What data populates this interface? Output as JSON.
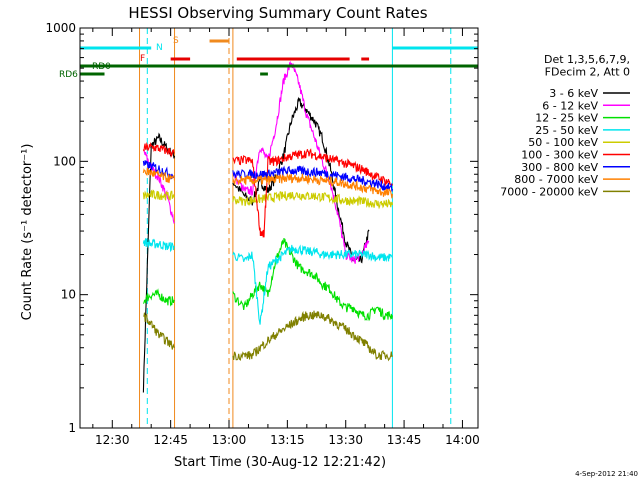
{
  "chart_data": {
    "type": "line",
    "title": "HESSI Observing Summary Count Rates",
    "xlabel": "Start Time (30-Aug-12 12:21:42)",
    "ylabel": "Count Rate (s⁻¹ detector⁻¹)",
    "ylim": [
      1,
      1000
    ],
    "yscale": "log",
    "xlim": [
      "12:21:42",
      "14:04:00"
    ],
    "x_ticks": [
      "12:30",
      "12:45",
      "13:00",
      "13:15",
      "13:30",
      "13:45",
      "14:00"
    ],
    "y_ticks": [
      "1",
      "10",
      "100",
      "1000"
    ],
    "legend_header": [
      "Det 1,3,5,6,7,9,",
      "FDecim 2, Att 0"
    ],
    "legend_placement": "right",
    "footer_timestamp": "4-Sep-2012 21:40",
    "flag_labels": {
      "n": "N",
      "s": "S",
      "f": "F",
      "rd0": "RD0",
      "rd6": "RD6"
    },
    "colors": {
      "axes": "#000000",
      "flag_n": "#00e5ee",
      "flag_s": "#f08a1e",
      "flag_f": "#e60000",
      "flag_rd": "#006400",
      "night_line": "#00e5ee",
      "saa_line": "#f08a1e"
    },
    "series": [
      {
        "name": "3 - 6 keV",
        "color": "#000000",
        "segments": [
          {
            "x": [
              "12:38",
              "12:40",
              "12:42",
              "12:44",
              "12:46"
            ],
            "y": [
              2,
              130,
              150,
              125,
              110
            ]
          },
          {
            "x": [
              "13:01",
              "13:04",
              "13:06",
              "13:08",
              "13:10",
              "13:12",
              "13:14",
              "13:16",
              "13:18",
              "13:20",
              "13:22",
              "13:24",
              "13:26",
              "13:28",
              "13:30",
              "13:32",
              "13:34",
              "13:36"
            ],
            "y": [
              70,
              55,
              50,
              70,
              60,
              75,
              110,
              200,
              280,
              240,
              200,
              150,
              90,
              45,
              25,
              18,
              18,
              30
            ]
          }
        ]
      },
      {
        "name": "6 - 12 keV",
        "color": "#ff00ff",
        "segments": [
          {
            "x": [
              "12:38",
              "12:40",
              "12:42",
              "12:44",
              "12:46"
            ],
            "y": [
              120,
              90,
              75,
              55,
              35
            ]
          },
          {
            "x": [
              "13:01",
              "13:04",
              "13:06",
              "13:08",
              "13:10",
              "13:12",
              "13:14",
              "13:16",
              "13:18",
              "13:20",
              "13:22",
              "13:24",
              "13:26",
              "13:28",
              "13:30",
              "13:32",
              "13:34",
              "13:36"
            ],
            "y": [
              80,
              60,
              60,
              130,
              100,
              180,
              400,
              550,
              380,
              220,
              150,
              100,
              70,
              40,
              20,
              18,
              20,
              25
            ]
          }
        ]
      },
      {
        "name": "12 - 25 keV",
        "color": "#00e000",
        "segments": [
          {
            "x": [
              "12:38",
              "12:40",
              "12:42",
              "12:44",
              "12:46"
            ],
            "y": [
              9,
              10,
              10,
              9,
              9
            ]
          },
          {
            "x": [
              "13:01",
              "13:04",
              "13:06",
              "13:08",
              "13:10",
              "13:12",
              "13:14",
              "13:16",
              "13:18",
              "13:20",
              "13:22",
              "13:24",
              "13:26",
              "13:28",
              "13:30",
              "13:32",
              "13:34",
              "13:36",
              "13:38",
              "13:40",
              "13:42"
            ],
            "y": [
              10,
              8,
              10,
              12,
              10,
              18,
              25,
              20,
              16,
              15,
              14,
              12,
              11,
              9,
              8,
              8,
              7,
              7,
              8,
              7,
              7
            ]
          }
        ]
      },
      {
        "name": "25 - 50 keV",
        "color": "#00e5ee",
        "segments": [
          {
            "x": [
              "12:38",
              "12:40",
              "12:42",
              "12:44",
              "12:46"
            ],
            "y": [
              25,
              24,
              24,
              23,
              23
            ]
          },
          {
            "x": [
              "13:01",
              "13:04",
              "13:06",
              "13:08",
              "13:10",
              "13:12",
              "13:14",
              "13:16",
              "13:18",
              "13:20",
              "13:22",
              "13:24",
              "13:26",
              "13:28",
              "13:30",
              "13:32",
              "13:34",
              "13:36",
              "13:38",
              "13:40",
              "13:42"
            ],
            "y": [
              20,
              18,
              20,
              6,
              16,
              18,
              20,
              22,
              22,
              21,
              21,
              20,
              20,
              20,
              20,
              20,
              20,
              20,
              19,
              19,
              19
            ]
          }
        ]
      },
      {
        "name": "50 - 100 keV",
        "color": "#cccc00",
        "segments": [
          {
            "x": [
              "12:38",
              "12:40",
              "12:42",
              "12:44",
              "12:46"
            ],
            "y": [
              55,
              56,
              56,
              55,
              55
            ]
          },
          {
            "x": [
              "13:01",
              "13:04",
              "13:06",
              "13:08",
              "13:10",
              "13:12",
              "13:14",
              "13:16",
              "13:18",
              "13:20",
              "13:22",
              "13:24",
              "13:26",
              "13:28",
              "13:30",
              "13:32",
              "13:34",
              "13:36",
              "13:38",
              "13:40",
              "13:42"
            ],
            "y": [
              52,
              50,
              51,
              52,
              53,
              54,
              55,
              56,
              56,
              55,
              55,
              54,
              53,
              52,
              51,
              50,
              50,
              49,
              48,
              48,
              47
            ]
          }
        ]
      },
      {
        "name": "100 - 300 keV",
        "color": "#ff0000",
        "segments": [
          {
            "x": [
              "12:38",
              "12:40",
              "12:42",
              "12:44",
              "12:46"
            ],
            "y": [
              125,
              128,
              125,
              120,
              115
            ]
          },
          {
            "x": [
              "13:01",
              "13:04",
              "13:06",
              "13:08",
              "13:09",
              "13:10",
              "13:12",
              "13:14",
              "13:16",
              "13:18",
              "13:20",
              "13:22",
              "13:24",
              "13:26",
              "13:28",
              "13:30",
              "13:32",
              "13:34",
              "13:36",
              "13:38",
              "13:40",
              "13:42"
            ],
            "y": [
              100,
              102,
              100,
              30,
              28,
              100,
              100,
              105,
              110,
              112,
              115,
              112,
              108,
              104,
              100,
              96,
              92,
              88,
              82,
              76,
              72,
              68
            ]
          }
        ]
      },
      {
        "name": "300 - 800 keV",
        "color": "#0000ff",
        "segments": [
          {
            "x": [
              "12:38",
              "12:40",
              "12:42",
              "12:44",
              "12:46"
            ],
            "y": [
              95,
              92,
              88,
              82,
              78
            ]
          },
          {
            "x": [
              "13:01",
              "13:04",
              "13:06",
              "13:08",
              "13:10",
              "13:12",
              "13:14",
              "13:16",
              "13:18",
              "13:20",
              "13:22",
              "13:24",
              "13:26",
              "13:28",
              "13:30",
              "13:32",
              "13:34",
              "13:36",
              "13:38",
              "13:40",
              "13:42"
            ],
            "y": [
              80,
              80,
              80,
              80,
              80,
              82,
              84,
              85,
              85,
              84,
              83,
              82,
              80,
              78,
              76,
              74,
              72,
              70,
              68,
              65,
              62
            ]
          }
        ]
      },
      {
        "name": "800 - 7000 keV",
        "color": "#ff8000",
        "segments": [
          {
            "x": [
              "12:38",
              "12:40",
              "12:42",
              "12:44",
              "12:46"
            ],
            "y": [
              85,
              82,
              78,
              75,
              72
            ]
          },
          {
            "x": [
              "13:01",
              "13:04",
              "13:06",
              "13:08",
              "13:10",
              "13:12",
              "13:14",
              "13:16",
              "13:18",
              "13:20",
              "13:22",
              "13:24",
              "13:26",
              "13:28",
              "13:30",
              "13:32",
              "13:34",
              "13:36",
              "13:38",
              "13:40",
              "13:42"
            ],
            "y": [
              72,
              72,
              72,
              72,
              72,
              73,
              74,
              75,
              75,
              74,
              73,
              72,
              71,
              70,
              68,
              66,
              64,
              62,
              60,
              58,
              57
            ]
          }
        ]
      },
      {
        "name": "7000 - 20000 keV",
        "color": "#808000",
        "segments": [
          {
            "x": [
              "12:38",
              "12:40",
              "12:42",
              "12:44",
              "12:46"
            ],
            "y": [
              7,
              6,
              5,
              4.5,
              4
            ]
          },
          {
            "x": [
              "13:01",
              "13:04",
              "13:06",
              "13:08",
              "13:10",
              "13:12",
              "13:14",
              "13:16",
              "13:18",
              "13:20",
              "13:22",
              "13:24",
              "13:26",
              "13:28",
              "13:30",
              "13:32",
              "13:34",
              "13:36",
              "13:38",
              "13:40",
              "13:42"
            ],
            "y": [
              3.5,
              3.5,
              3.5,
              4,
              4.5,
              5,
              5.5,
              6,
              6.5,
              7,
              7,
              7,
              6.5,
              6,
              5.5,
              5,
              4.5,
              4,
              3.5,
              3.5,
              3.5
            ]
          }
        ]
      }
    ],
    "flags": {
      "night": [
        [
          "12:21:42",
          "12:40"
        ],
        [
          "13:42",
          "14:04"
        ]
      ],
      "saa": [
        [
          "12:55",
          "13:00"
        ]
      ],
      "flare": [
        [
          "12:45",
          "12:50"
        ],
        [
          "13:02",
          "13:31"
        ],
        [
          "13:34",
          "13:36"
        ]
      ],
      "rd0": [
        [
          "12:21:42",
          "14:04"
        ]
      ],
      "rd6": [
        [
          "12:21:42",
          "12:28"
        ],
        [
          "13:08",
          "13:10"
        ]
      ]
    },
    "vlines": [
      {
        "kind": "night",
        "x": "12:21:42",
        "style": "solid"
      },
      {
        "kind": "night",
        "x": "12:39",
        "style": "dashed"
      },
      {
        "kind": "night",
        "x": "13:42",
        "style": "solid"
      },
      {
        "kind": "night",
        "x": "13:57",
        "style": "dashed"
      },
      {
        "kind": "saa",
        "x": "12:37",
        "style": "solid"
      },
      {
        "kind": "saa",
        "x": "12:46",
        "style": "solid"
      },
      {
        "kind": "saa",
        "x": "13:00",
        "style": "dashed"
      },
      {
        "kind": "saa",
        "x": "13:01",
        "style": "solid"
      }
    ]
  }
}
